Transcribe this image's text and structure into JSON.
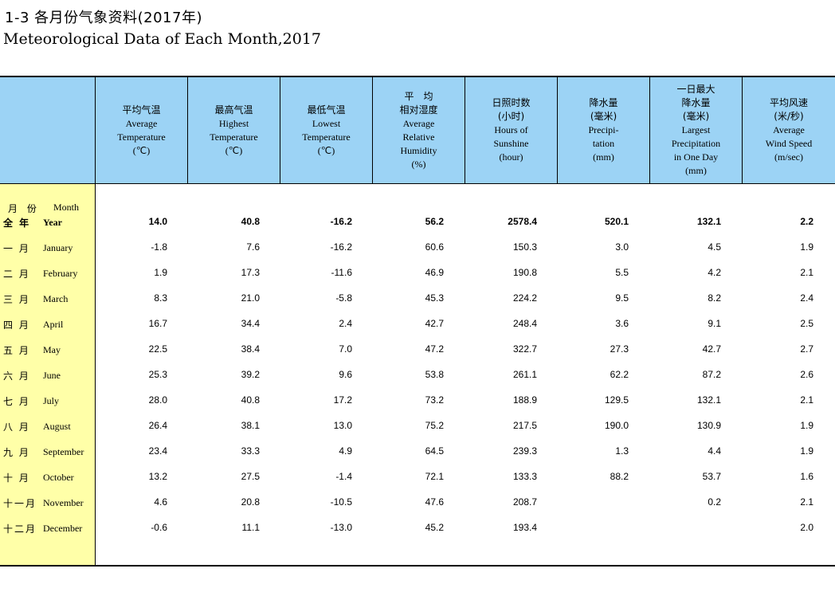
{
  "title_cn": "1-3  各月份气象资料(2017年)",
  "title_en": "Meteorological Data of Each Month,2017",
  "header": {
    "month_cn": "月 份",
    "month_en": "Month",
    "cols": [
      {
        "lines": [
          "平均气温",
          "Average",
          "Temperature",
          "(℃)"
        ]
      },
      {
        "lines": [
          "最高气温",
          "Highest",
          "Temperature",
          "(℃)"
        ]
      },
      {
        "lines": [
          "最低气温",
          "Lowest",
          "Temperature",
          "(℃)"
        ]
      },
      {
        "lines": [
          "平　均",
          "相对湿度",
          "Average",
          "Relative",
          "Humidity",
          "(%)"
        ]
      },
      {
        "lines": [
          "日照时数",
          "(小时)",
          "Hours of",
          "Sunshine",
          "(hour)"
        ]
      },
      {
        "lines": [
          "降水量",
          "(毫米)",
          "Precipi-",
          "tation",
          "(mm)"
        ]
      },
      {
        "lines": [
          "一日最大",
          "降水量",
          "(毫米)",
          "Largest",
          "Precipitation",
          "in One Day",
          "(mm)"
        ]
      },
      {
        "lines": [
          "平均风速",
          "(米/秒)",
          "Average",
          "Wind Speed",
          "(m/sec)"
        ]
      }
    ]
  },
  "rows": [
    {
      "cn": "全 年",
      "en": "Year",
      "bold": true,
      "v": [
        "14.0",
        "40.8",
        "-16.2",
        "56.2",
        "2578.4",
        "520.1",
        "132.1",
        "2.2"
      ]
    },
    {
      "cn": "一 月",
      "en": "January",
      "v": [
        "-1.8",
        "7.6",
        "-16.2",
        "60.6",
        "150.3",
        "3.0",
        "4.5",
        "1.9"
      ]
    },
    {
      "cn": "二 月",
      "en": "February",
      "v": [
        "1.9",
        "17.3",
        "-11.6",
        "46.9",
        "190.8",
        "5.5",
        "4.2",
        "2.1"
      ]
    },
    {
      "cn": "三 月",
      "en": "March",
      "v": [
        "8.3",
        "21.0",
        "-5.8",
        "45.3",
        "224.2",
        "9.5",
        "8.2",
        "2.4"
      ]
    },
    {
      "cn": "四 月",
      "en": "April",
      "v": [
        "16.7",
        "34.4",
        "2.4",
        "42.7",
        "248.4",
        "3.6",
        "9.1",
        "2.5"
      ]
    },
    {
      "cn": "五 月",
      "en": "May",
      "v": [
        "22.5",
        "38.4",
        "7.0",
        "47.2",
        "322.7",
        "27.3",
        "42.7",
        "2.7"
      ]
    },
    {
      "cn": "六 月",
      "en": "June",
      "v": [
        "25.3",
        "39.2",
        "9.6",
        "53.8",
        "261.1",
        "62.2",
        "87.2",
        "2.6"
      ]
    },
    {
      "cn": "七 月",
      "en": "July",
      "v": [
        "28.0",
        "40.8",
        "17.2",
        "73.2",
        "188.9",
        "129.5",
        "132.1",
        "2.1"
      ]
    },
    {
      "cn": "八 月",
      "en": "August",
      "v": [
        "26.4",
        "38.1",
        "13.0",
        "75.2",
        "217.5",
        "190.0",
        "130.9",
        "1.9"
      ]
    },
    {
      "cn": "九 月",
      "en": "September",
      "v": [
        "23.4",
        "33.3",
        "4.9",
        "64.5",
        "239.3",
        "1.3",
        "4.4",
        "1.9"
      ]
    },
    {
      "cn": "十 月",
      "en": "October",
      "v": [
        "13.2",
        "27.5",
        "-1.4",
        "72.1",
        "133.3",
        "88.2",
        "53.7",
        "1.6"
      ]
    },
    {
      "cn": "十一月",
      "en": "November",
      "v": [
        "4.6",
        "20.8",
        "-10.5",
        "47.6",
        "208.7",
        "",
        "0.2",
        "2.1"
      ]
    },
    {
      "cn": "十二月",
      "en": "December",
      "v": [
        "-0.6",
        "11.1",
        "-13.0",
        "45.2",
        "193.4",
        "",
        "",
        "2.0"
      ]
    }
  ]
}
